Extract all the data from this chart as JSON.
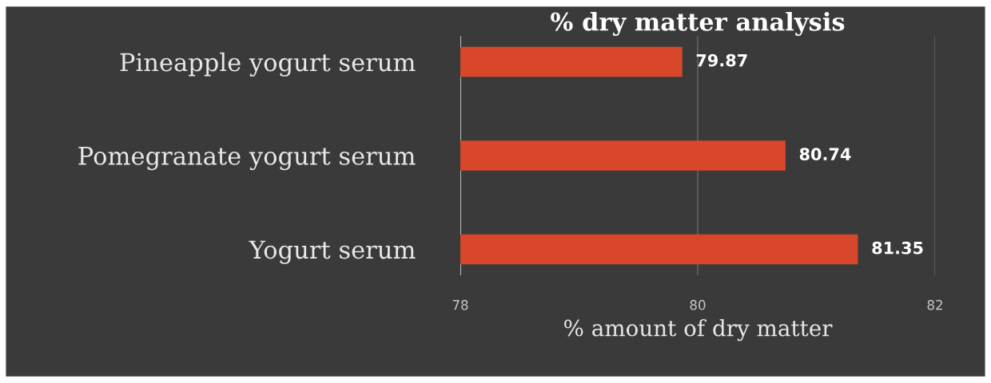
{
  "chart_data": {
    "type": "bar",
    "orientation": "horizontal",
    "title": "% dry matter analysis",
    "categories": [
      "Pineapple yogurt serum",
      "Pomegranate yogurt serum",
      "Yogurt serum"
    ],
    "values": [
      79.87,
      80.74,
      81.35
    ],
    "color": "#d9472b",
    "xlim": [
      78,
      82
    ],
    "xticks": [
      78,
      80,
      82
    ],
    "xlabel": "% amount of dry matter",
    "grid": "x",
    "data_labels": true
  }
}
